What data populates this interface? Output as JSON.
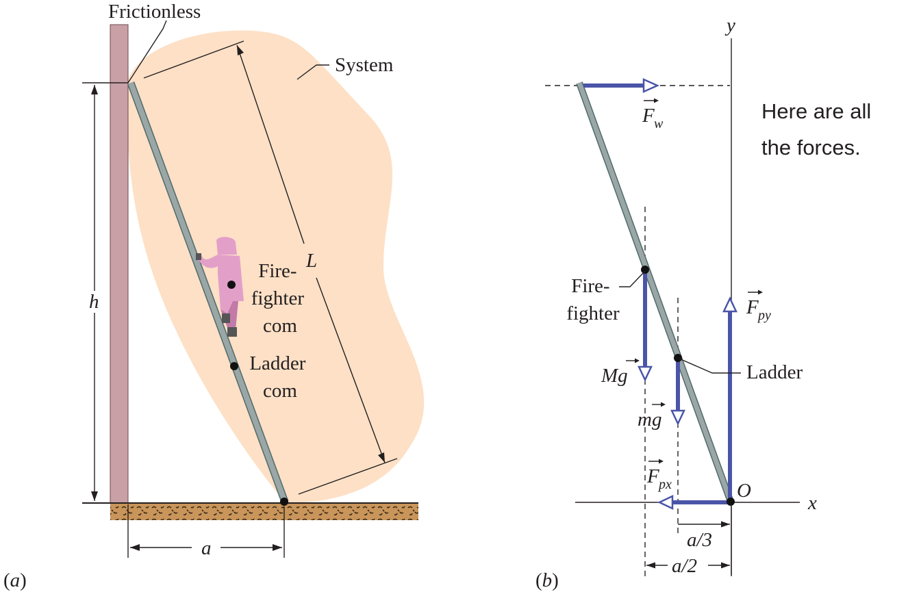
{
  "panel_a": {
    "tag": "(a)",
    "frictionless": "Frictionless",
    "system": "System",
    "h": "h",
    "L": "L",
    "a": "a",
    "firefighter_com": [
      "Fire-",
      "fighter",
      "com"
    ],
    "ladder_com": [
      "Ladder",
      "com"
    ]
  },
  "panel_b": {
    "tag": "(b)",
    "y_axis": "y",
    "x_axis": "x",
    "origin": "O",
    "note": [
      "Here are all",
      "the forces."
    ],
    "F": "F",
    "fw_sub": "w",
    "fpy_sub": "py",
    "fpx_sub": "px",
    "Mg": "Mg",
    "mg": "mg",
    "firefighter": [
      "Fire-",
      "fighter"
    ],
    "ladder": "Ladder",
    "a_over_3": "a/3",
    "a_over_2": "a/2"
  },
  "colors": {
    "wall": "#c9a0a6",
    "ladder": "#9aa7a6",
    "ground": "#c9955a",
    "system_blob": "#fde0c6",
    "force_arrow": "#4a55a8",
    "firefighter": "#e2a0c8"
  }
}
